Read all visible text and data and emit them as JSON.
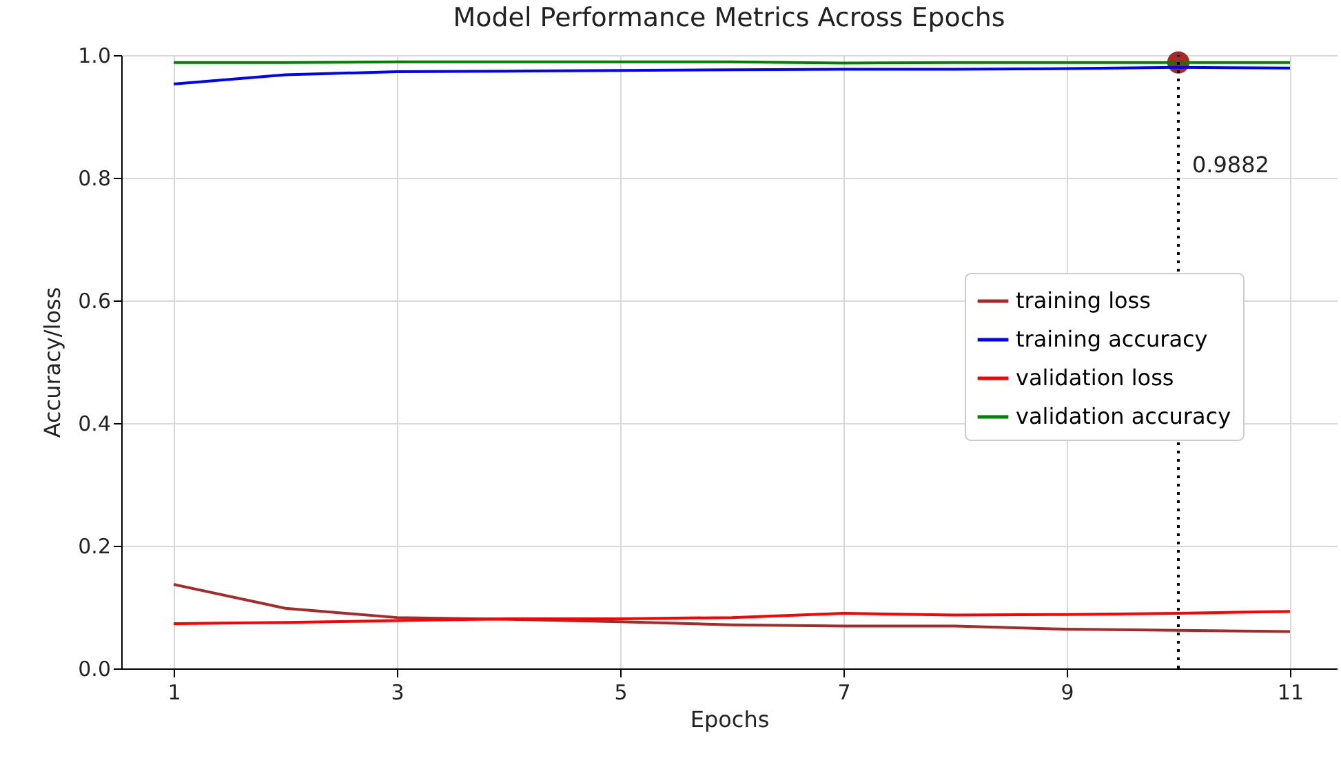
{
  "chart_data": {
    "type": "line",
    "title": "Model Performance Metrics Across Epochs",
    "xlabel": "Epochs",
    "ylabel": "Accuracy/loss",
    "x": [
      1,
      2,
      3,
      4,
      5,
      6,
      7,
      8,
      9,
      10,
      11
    ],
    "series": [
      {
        "name": "training loss",
        "color": "#a52a2a",
        "values": [
          0.137,
          0.098,
          0.083,
          0.08,
          0.076,
          0.071,
          0.069,
          0.069,
          0.064,
          0.062,
          0.06
        ]
      },
      {
        "name": "training accuracy",
        "color": "#0000ff",
        "values": [
          0.953,
          0.968,
          0.973,
          0.974,
          0.975,
          0.976,
          0.977,
          0.977,
          0.978,
          0.98,
          0.979
        ]
      },
      {
        "name": "validation loss",
        "color": "#ff0000",
        "values": [
          0.073,
          0.075,
          0.078,
          0.081,
          0.081,
          0.083,
          0.09,
          0.087,
          0.088,
          0.09,
          0.093
        ]
      },
      {
        "name": "validation accuracy",
        "color": "#008000",
        "values": [
          0.988,
          0.988,
          0.989,
          0.989,
          0.989,
          0.989,
          0.987,
          0.988,
          0.988,
          0.988,
          0.988
        ]
      },
      {
        "type": "scatter",
        "color": "#a52a2a",
        "marker": "circle",
        "x": [
          10
        ],
        "values": [
          0.9882
        ]
      }
    ],
    "xlim": [
      0.53,
      11.42
    ],
    "xticks": [
      1,
      3,
      5,
      7,
      9,
      11
    ],
    "ylim": [
      0,
      1
    ],
    "yticks": [
      {
        "value": 0,
        "label": "0.0"
      },
      0.2,
      0.4,
      0.6,
      0.8,
      {
        "value": 1,
        "label": "1.0"
      }
    ],
    "ref_lines": [
      {
        "axis": "x",
        "value": 10,
        "color": "#000000",
        "line_style": "dotted"
      }
    ],
    "annotations": [
      "0.9882"
    ],
    "grid": true,
    "legend": "right",
    "line_style": "solid"
  }
}
